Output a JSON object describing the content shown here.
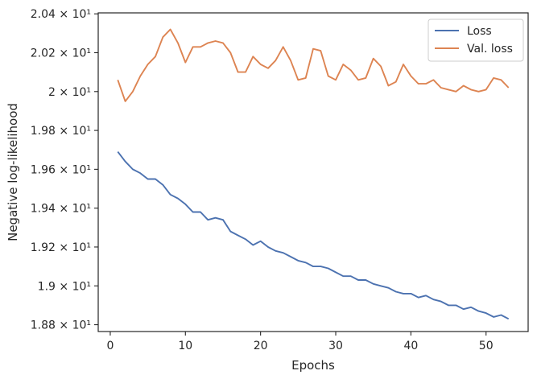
{
  "chart_data": {
    "type": "line",
    "xlabel": "Epochs",
    "ylabel": "Negative log-likelihood",
    "xlim": [
      -1.6,
      55.6
    ],
    "ylim": [
      18.765,
      20.405
    ],
    "xticks": [
      0,
      10,
      20,
      30,
      40,
      50
    ],
    "yticks": [
      {
        "value": 18.8,
        "label": "1.88 × 10¹"
      },
      {
        "value": 19.0,
        "label": "1.9 × 10¹"
      },
      {
        "value": 19.2,
        "label": "1.92 × 10¹"
      },
      {
        "value": 19.4,
        "label": "1.94 × 10¹"
      },
      {
        "value": 19.6,
        "label": "1.96 × 10¹"
      },
      {
        "value": 19.8,
        "label": "1.98 × 10¹"
      },
      {
        "value": 20.0,
        "label": "2 × 10¹"
      },
      {
        "value": 20.2,
        "label": "2.02 × 10¹"
      },
      {
        "value": 20.4,
        "label": "2.04 × 10¹"
      }
    ],
    "grid": false,
    "legend_position": "top-right",
    "x": [
      1,
      2,
      3,
      4,
      5,
      6,
      7,
      8,
      9,
      10,
      11,
      12,
      13,
      14,
      15,
      16,
      17,
      18,
      19,
      20,
      21,
      22,
      23,
      24,
      25,
      26,
      27,
      28,
      29,
      30,
      31,
      32,
      33,
      34,
      35,
      36,
      37,
      38,
      39,
      40,
      41,
      42,
      43,
      44,
      45,
      46,
      47,
      48,
      49,
      50,
      51,
      52,
      53
    ],
    "series": [
      {
        "name": "Loss",
        "color": "#4c72b0",
        "values": [
          19.69,
          19.64,
          19.6,
          19.58,
          19.55,
          19.55,
          19.52,
          19.47,
          19.45,
          19.42,
          19.38,
          19.38,
          19.34,
          19.35,
          19.34,
          19.28,
          19.26,
          19.24,
          19.21,
          19.23,
          19.2,
          19.18,
          19.17,
          19.15,
          19.13,
          19.12,
          19.1,
          19.1,
          19.09,
          19.07,
          19.05,
          19.05,
          19.03,
          19.03,
          19.01,
          19.0,
          18.99,
          18.97,
          18.96,
          18.96,
          18.94,
          18.95,
          18.93,
          18.92,
          18.9,
          18.9,
          18.88,
          18.89,
          18.87,
          18.86,
          18.84,
          18.85,
          18.83
        ]
      },
      {
        "name": "Val. loss",
        "color": "#dd8452",
        "values": [
          20.06,
          19.95,
          20.0,
          20.08,
          20.14,
          20.18,
          20.28,
          20.32,
          20.25,
          20.15,
          20.23,
          20.23,
          20.25,
          20.26,
          20.25,
          20.2,
          20.1,
          20.1,
          20.18,
          20.14,
          20.12,
          20.16,
          20.23,
          20.16,
          20.06,
          20.07,
          20.22,
          20.21,
          20.08,
          20.06,
          20.14,
          20.11,
          20.06,
          20.07,
          20.17,
          20.13,
          20.03,
          20.05,
          20.14,
          20.08,
          20.04,
          20.04,
          20.06,
          20.02,
          20.01,
          20.0,
          20.03,
          20.01,
          20.0,
          20.01,
          20.07,
          20.06,
          20.02
        ]
      }
    ]
  }
}
